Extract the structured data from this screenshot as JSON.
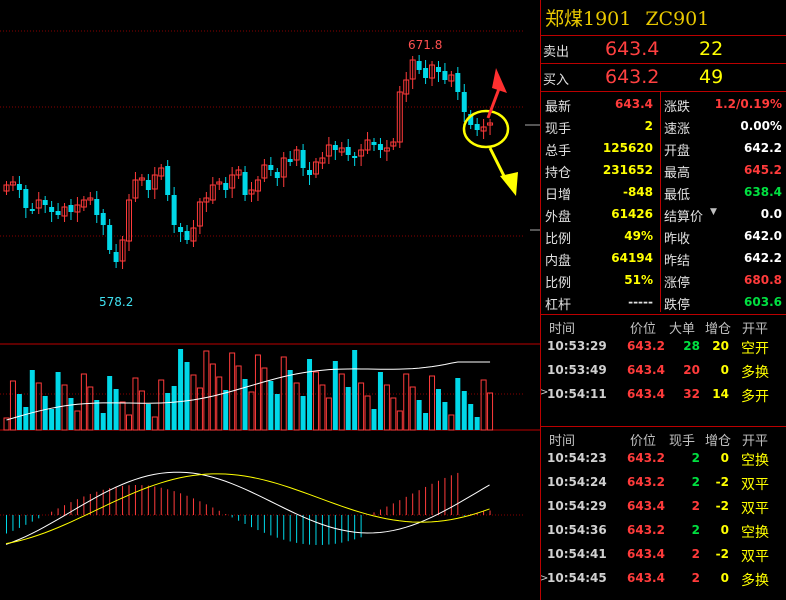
{
  "contract": {
    "name": "郑煤1901",
    "code": "ZC901"
  },
  "orderbook": {
    "ask": {
      "label": "卖出",
      "price": "643.4",
      "qty": "22"
    },
    "bid": {
      "label": "买入",
      "price": "643.2",
      "qty": "49"
    }
  },
  "quote": {
    "left": [
      {
        "k": "最新",
        "v": "643.4",
        "c": "#ff3b3b"
      },
      {
        "k": "现手",
        "v": "2",
        "c": "#ffff00"
      },
      {
        "k": "总手",
        "v": "125620",
        "c": "#ffff00"
      },
      {
        "k": "持仓",
        "v": "231652",
        "c": "#ffff00"
      },
      {
        "k": "日增",
        "v": "-848",
        "c": "#ffff00"
      },
      {
        "k": "外盘",
        "v": "61426",
        "c": "#ffff00"
      },
      {
        "k": "比例",
        "v": "49%",
        "c": "#ffff00"
      },
      {
        "k": "内盘",
        "v": "64194",
        "c": "#ffff00"
      },
      {
        "k": "比例",
        "v": "51%",
        "c": "#ffff00"
      },
      {
        "k": "杠杆",
        "v": "-----",
        "c": "#e0e0e0"
      }
    ],
    "right": [
      {
        "k": "涨跌",
        "v": "1.2/0.19%",
        "c": "#ff3b3b"
      },
      {
        "k": "速涨",
        "v": "0.00%",
        "c": "#ffffff"
      },
      {
        "k": "开盘",
        "v": "642.2",
        "c": "#ffffff"
      },
      {
        "k": "最高",
        "v": "645.2",
        "c": "#ff3b3b"
      },
      {
        "k": "最低",
        "v": "638.4",
        "c": "#00e040"
      },
      {
        "k": "结算价",
        "v": "0.0",
        "c": "#ffffff"
      },
      {
        "k": "昨收",
        "v": "642.0",
        "c": "#ffffff"
      },
      {
        "k": "昨结",
        "v": "642.2",
        "c": "#ffffff"
      },
      {
        "k": "涨停",
        "v": "680.8",
        "c": "#ff3b3b"
      },
      {
        "k": "跌停",
        "v": "603.6",
        "c": "#00e040"
      }
    ]
  },
  "trades_header": {
    "time": "时间",
    "price": "价位",
    "big": "大单",
    "add": "增仓",
    "oc": "开平"
  },
  "big_trades": [
    {
      "t": "10:53:29",
      "p": "643.2",
      "v": "28",
      "vc": "#00e040",
      "d": "20",
      "a": "空开"
    },
    {
      "t": "10:53:49",
      "p": "643.4",
      "v": "20",
      "vc": "#ff3b3b",
      "d": "0",
      "a": "多换"
    },
    {
      "t": "10:54:11",
      "p": "643.4",
      "v": "32",
      "vc": "#ff3b3b",
      "d": "14",
      "a": "多开"
    }
  ],
  "ticks_header": {
    "time": "时间",
    "price": "价位",
    "vol": "现手",
    "add": "增仓",
    "oc": "开平"
  },
  "ticks": [
    {
      "t": "10:54:23",
      "p": "643.2",
      "v": "2",
      "vc": "#00e040",
      "d": "0",
      "a": "空换"
    },
    {
      "t": "10:54:24",
      "p": "643.2",
      "v": "2",
      "vc": "#00e040",
      "d": "-2",
      "a": "双平"
    },
    {
      "t": "10:54:29",
      "p": "643.4",
      "v": "2",
      "vc": "#ff3b3b",
      "d": "-2",
      "a": "双平"
    },
    {
      "t": "10:54:36",
      "p": "643.2",
      "v": "2",
      "vc": "#00e040",
      "d": "0",
      "a": "空换"
    },
    {
      "t": "10:54:41",
      "p": "643.4",
      "v": "2",
      "vc": "#ff3b3b",
      "d": "-2",
      "a": "双平"
    },
    {
      "t": "10:54:45",
      "p": "643.4",
      "v": "2",
      "vc": "#ff3b3b",
      "d": "0",
      "a": "多换"
    }
  ],
  "chart_data": {
    "type": "candlestick",
    "high_label": "671.8",
    "low_label": "578.2",
    "high": 671.8,
    "low": 578.2,
    "colors": {
      "up": "#ff3b3b",
      "down": "#00d8e8"
    },
    "annotations": [
      "up-arrow-red",
      "down-arrow-yellow",
      "circle-yellow"
    ]
  }
}
